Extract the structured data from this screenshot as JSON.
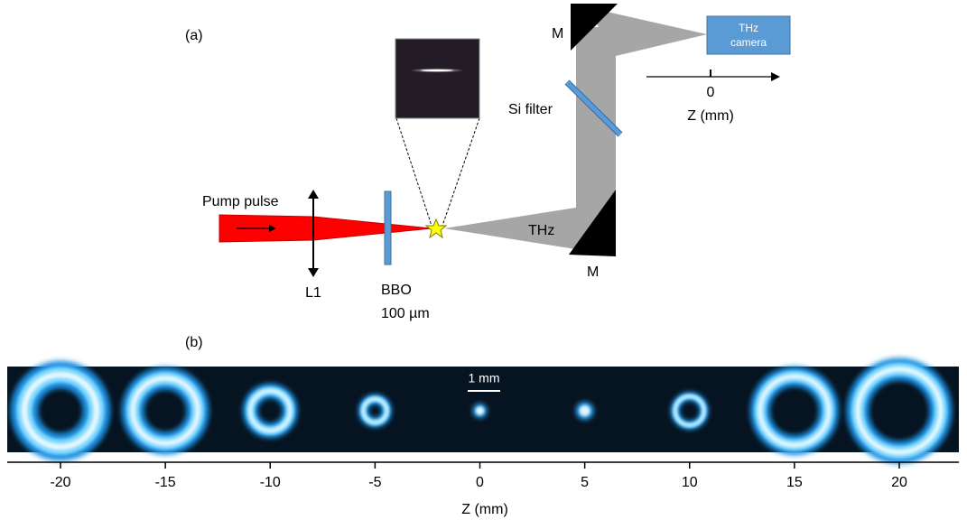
{
  "panel_a": {
    "label": "(a)",
    "pump_label": "Pump pulse",
    "lens_label": "L1",
    "crystal_label": [
      "BBO",
      "100 µm"
    ],
    "thz_label": "THz",
    "mirror_labels": [
      "M",
      "M"
    ],
    "filter_label": "Si filter",
    "camera_label": [
      "THz",
      "camera"
    ],
    "axis": {
      "tick": 0,
      "label": "Z (mm)"
    }
  },
  "panel_b": {
    "label": "(b)",
    "scale_bar": "1 mm",
    "axis": {
      "ticks": [
        -20,
        -15,
        -10,
        -5,
        0,
        5,
        10,
        15,
        20
      ],
      "label": "Z (mm)"
    }
  }
}
